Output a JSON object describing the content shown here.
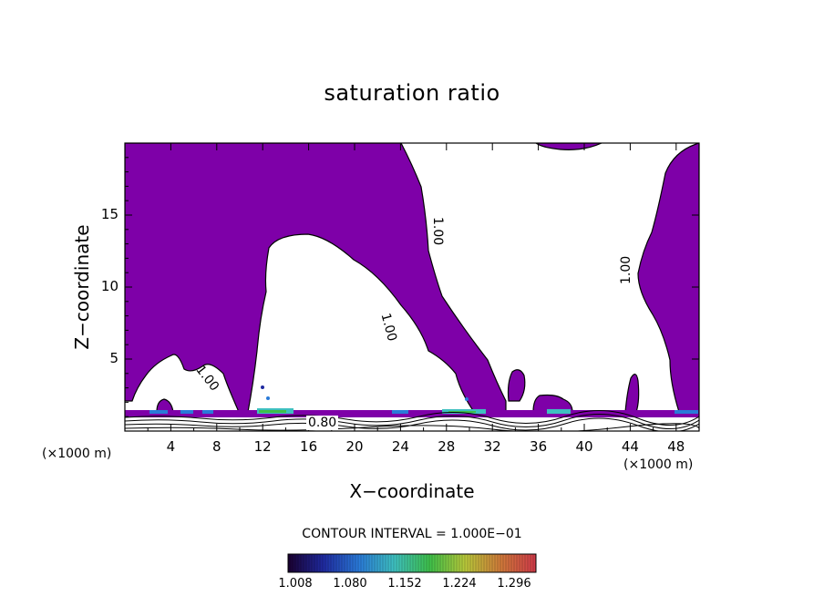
{
  "chart_data": {
    "type": "filled contour",
    "title": "saturation ratio",
    "xlabel": "X−coordinate",
    "ylabel": "Z−coordinate",
    "x_unit_left": "(×1000 m)",
    "x_unit_right": "(×1000 m)",
    "x_ticks": [
      4,
      8,
      12,
      16,
      20,
      24,
      28,
      32,
      36,
      40,
      44,
      48
    ],
    "y_ticks": [
      5,
      10,
      15
    ],
    "xlim": [
      0,
      50
    ],
    "ylim": [
      0,
      20
    ],
    "contour_interval_text": "CONTOUR INTERVAL = 1.000E−01",
    "contour_labels": [
      "1.00",
      "1.00",
      "1.00",
      "1.00",
      "0.80"
    ],
    "colorbar": {
      "ticks": [
        "1.008",
        "1.080",
        "1.152",
        "1.224",
        "1.296"
      ],
      "colors": [
        "#1a0030",
        "#1f2aa0",
        "#2a7ad8",
        "#3ec0c0",
        "#3ec04a",
        "#b8c83a",
        "#d07a3a",
        "#d03a4a"
      ]
    },
    "fill_color": "#7e00a8"
  }
}
